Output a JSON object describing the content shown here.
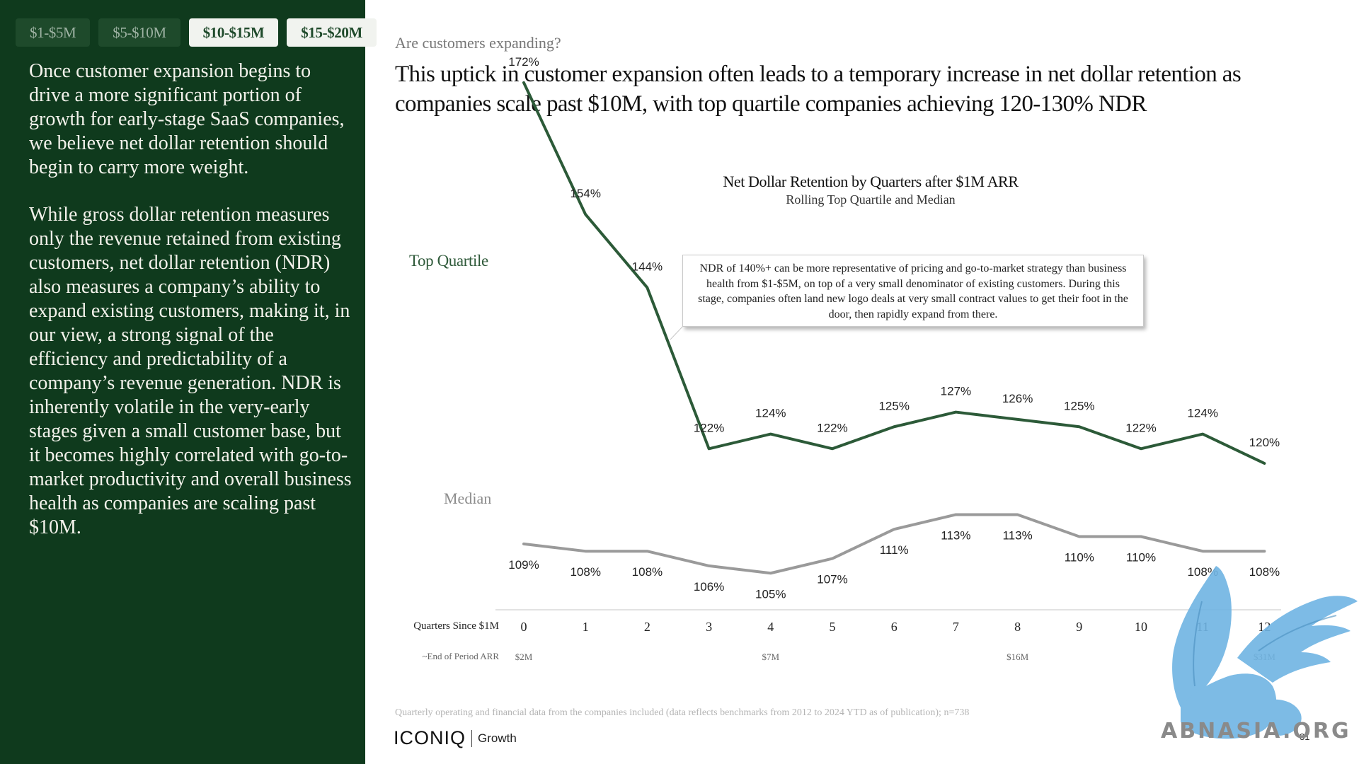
{
  "tabs": [
    {
      "label": "$1-$5M",
      "active": false
    },
    {
      "label": "$5-$10M",
      "active": false
    },
    {
      "label": "$10-$15M",
      "active": true
    },
    {
      "label": "$15-$20M",
      "active": true
    }
  ],
  "body": {
    "paragraph1": "Once customer expansion begins to drive a more significant portion of growth for early-stage SaaS companies, we believe net dollar retention should begin to carry more weight.",
    "paragraph2": "While gross dollar retention measures only the revenue retained from existing customers, net dollar retention (NDR) also measures a company’s ability to expand existing customers, making it, in our view, a strong signal of the efficiency and predictability of a company’s revenue generation. NDR is inherently volatile in the very-early stages given a small customer base, but it becomes highly correlated with go-to-market productivity and overall business health as companies are scaling past $10M."
  },
  "eyebrow": "Are customers expanding?",
  "headline": "This uptick in customer expansion often leads to a temporary increase in net dollar retention as companies scale past $10M, with top quartile companies achieving 120-130% NDR",
  "callout": "NDR of 140%+ can be more representative of pricing and go-to-market strategy than business health from $1-$5M, on top of a very small denominator of existing customers. During this stage, companies often land new logo deals at very small contract values to get their foot in the door, then rapidly expand from there.",
  "chart_data": {
    "type": "line",
    "title": "Net Dollar Retention by Quarters after $1M ARR",
    "subtitle": "Rolling Top Quartile and Median",
    "xlabel": "Quarters Since $1M",
    "x": [
      0,
      1,
      2,
      3,
      4,
      5,
      6,
      7,
      8,
      9,
      10,
      11,
      12
    ],
    "secondary_x_label": "~End of Period ARR",
    "secondary_x_ticks": [
      {
        "x": 0,
        "label": "$2M"
      },
      {
        "x": 4,
        "label": "$7M"
      },
      {
        "x": 8,
        "label": "$16M"
      },
      {
        "x": 12,
        "label": "$31M"
      }
    ],
    "series": [
      {
        "name": "Top Quartile",
        "color": "#2c5a38",
        "values": [
          172,
          154,
          144,
          122,
          124,
          122,
          125,
          127,
          126,
          125,
          122,
          124,
          120
        ]
      },
      {
        "name": "Median",
        "color": "#9a9a9a",
        "values": [
          109,
          108,
          108,
          106,
          105,
          107,
          111,
          113,
          113,
          110,
          110,
          108,
          108
        ]
      }
    ],
    "value_suffix": "%",
    "grid": false,
    "legend": "inline-left"
  },
  "footnote": "Quarterly operating and financial data from the companies included (data reflects benchmarks from 2012 to 2024 YTD as of publication); n=738",
  "logo": {
    "main": "ICONIQ",
    "sub": "Growth"
  },
  "page_number": "31",
  "watermark": "ABNASIA.ORG"
}
